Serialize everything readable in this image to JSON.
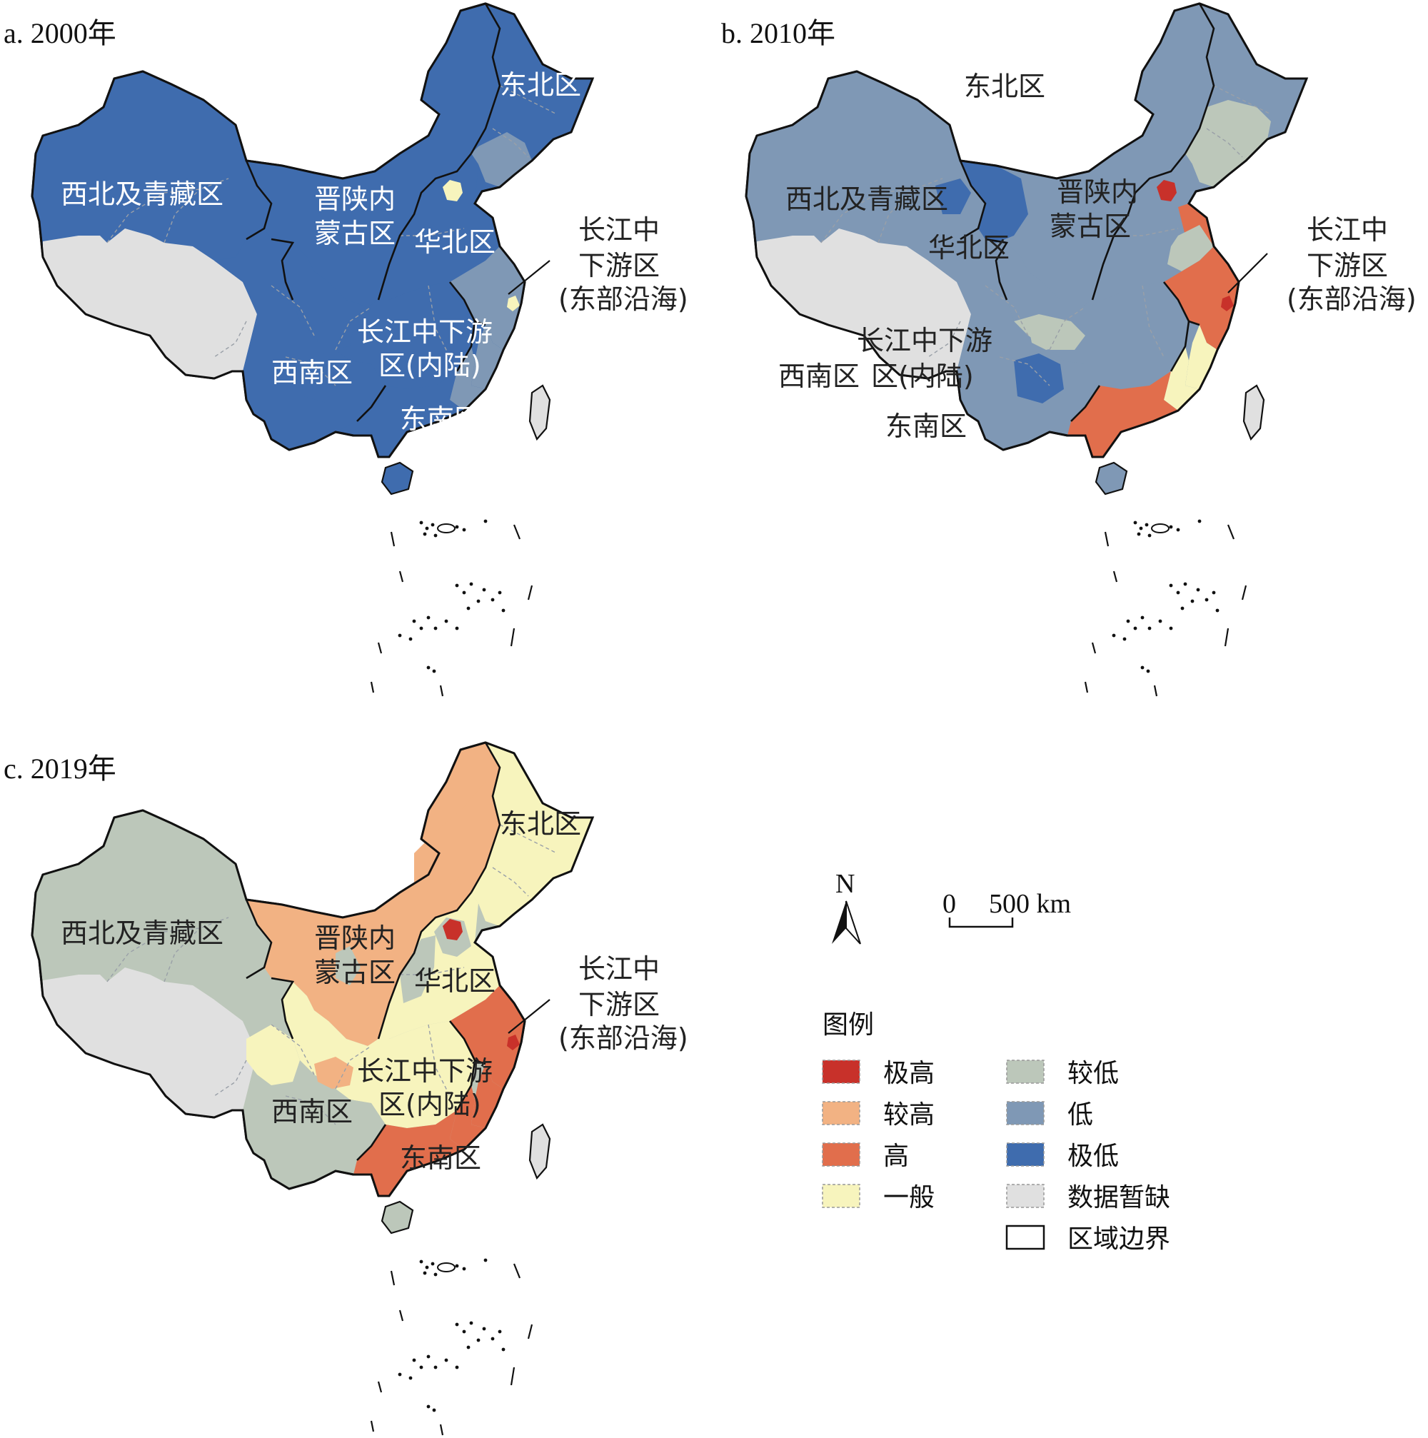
{
  "colors": {
    "extremely_high": "#c8312a",
    "higher": "#f2b283",
    "high": "#e16e4c",
    "medium": "#f7f4bd",
    "lower": "#bcc7ba",
    "low": "#7f98b5",
    "extremely_low": "#3f6cae",
    "no_data": "#e0e0e0",
    "boundary": "#111111"
  },
  "panels": [
    {
      "title": "a. 2000年",
      "regions": {
        "northwest": "extremely_low",
        "tibet": "no_data",
        "jinshaan": "extremely_low",
        "northeast": "extremely_low",
        "north_china": "extremely_low",
        "beijing": "medium",
        "yangtze_inland": "extremely_low",
        "yangtze_coast": "low",
        "shanghai": "medium",
        "southwest": "extremely_low",
        "southeast": "extremely_low",
        "hainan": "extremely_low",
        "taiwan": "no_data",
        "chongqing": "extremely_low",
        "guizhou": "extremely_low",
        "liaoning": "low",
        "fujian": "low",
        "zhejiang": "low"
      },
      "labels": {
        "northwest": "西北及青藏区",
        "jinshaan_1": "晋陕内",
        "jinshaan_2": "蒙古区",
        "north_china": "华北区",
        "northeast": "东北区",
        "yangtze_inland_1": "长江中下游",
        "yangtze_inland_2": "区(内陆)",
        "southwest": "西南区",
        "southeast": "东南区",
        "yangtze_coast_1": "长江中",
        "yangtze_coast_2": "下游区",
        "yangtze_coast_3": "(东部沿海)"
      }
    },
    {
      "title": "b. 2010年",
      "regions": {
        "northwest": "low",
        "tibet": "no_data",
        "jinshaan": "low",
        "northeast": "low",
        "north_china": "low",
        "beijing": "extremely_high",
        "yangtze_inland": "low",
        "yangtze_coast": "high",
        "shanghai": "extremely_high",
        "southwest": "low",
        "southeast": "high",
        "hainan": "low",
        "taiwan": "no_data",
        "chongqing": "lower",
        "guizhou": "extremely_low",
        "liaoning": "lower",
        "fujian": "medium",
        "zhejiang": "medium",
        "ningxia_gansu": "extremely_low",
        "qinghai_gansu": "extremely_low",
        "heilongjiang_s": "lower",
        "shandong": "lower",
        "hubei": "lower",
        "hebei_s": "high"
      },
      "labels": {
        "northwest": "西北及青藏区",
        "jinshaan_1": "晋陕内",
        "jinshaan_2": "蒙古区",
        "north_china": "华北区",
        "northeast": "东北区",
        "yangtze_inland_1": "长江中下游",
        "yangtze_inland_2": "区(内陆)",
        "southwest": "西南区",
        "southeast": "东南区",
        "yangtze_coast_1": "长江中",
        "yangtze_coast_2": "下游区",
        "yangtze_coast_3": "(东部沿海)"
      }
    },
    {
      "title": "c. 2019年",
      "regions": {
        "northwest": "lower",
        "tibet": "no_data",
        "jinshaan": "higher",
        "northeast": "medium",
        "north_china": "medium",
        "beijing": "extremely_high",
        "yangtze_inland": "medium",
        "yangtze_coast": "high",
        "shanghai": "extremely_high",
        "southwest": "lower",
        "southeast": "high",
        "hainan": "lower",
        "taiwan": "no_data",
        "chongqing": "higher",
        "guizhou": "lower",
        "liaoning": "medium",
        "fujian": "high",
        "zhejiang": "high",
        "sichuan": "medium",
        "shanxi": "lower",
        "hebei": "lower",
        "ningxia": "lower",
        "heilongjiang_w": "higher"
      },
      "labels": {
        "northwest": "西北及青藏区",
        "jinshaan_1": "晋陕内",
        "jinshaan_2": "蒙古区",
        "north_china": "华北区",
        "northeast": "东北区",
        "yangtze_inland_1": "长江中下游",
        "yangtze_inland_2": "区(内陆)",
        "southwest": "西南区",
        "southeast": "东南区",
        "yangtze_coast_1": "长江中",
        "yangtze_coast_2": "下游区",
        "yangtze_coast_3": "(东部沿海)"
      }
    }
  ],
  "compass": {
    "label": "N"
  },
  "scale": {
    "zero": "0",
    "value": "500 km"
  },
  "legend": {
    "title": "图例",
    "items": [
      {
        "label": "极高",
        "key": "extremely_high"
      },
      {
        "label": "较高",
        "key": "higher"
      },
      {
        "label": "高",
        "key": "high"
      },
      {
        "label": "一般",
        "key": "medium"
      },
      {
        "label": "较低",
        "key": "lower"
      },
      {
        "label": "低",
        "key": "low"
      },
      {
        "label": "极低",
        "key": "extremely_low"
      },
      {
        "label": "数据暂缺",
        "key": "no_data"
      },
      {
        "label": "区域边界",
        "key": "boundary"
      }
    ]
  }
}
